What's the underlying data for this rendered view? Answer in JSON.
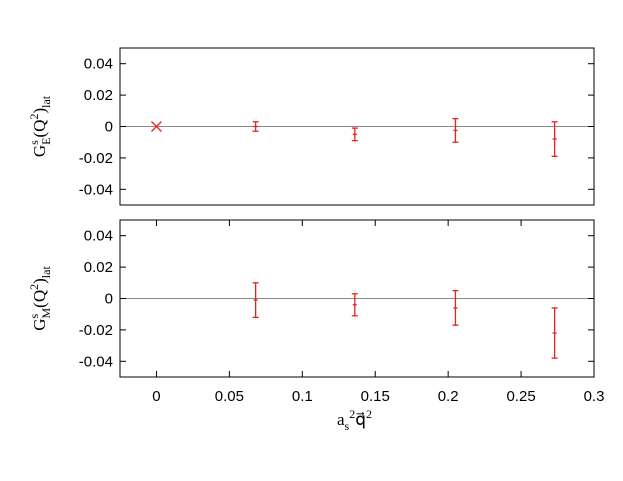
{
  "chart_data": [
    {
      "type": "errorbar",
      "ylabel": [
        {
          "text": "G",
          "pos": "base"
        },
        {
          "text": "s",
          "pos": "sup"
        },
        {
          "text": "E",
          "pos": "sub"
        },
        {
          "text": "(Q",
          "pos": "base"
        },
        {
          "text": "2",
          "pos": "sup"
        },
        {
          "text": ")",
          "pos": "base"
        },
        {
          "text": "lat",
          "pos": "sub"
        }
      ],
      "xlim": [
        -0.025,
        0.3
      ],
      "ylim": [
        -0.05,
        0.05
      ],
      "yticks": [
        0.04,
        0.02,
        0,
        -0.02,
        -0.04
      ],
      "hline": 0,
      "hline_color": "#888888",
      "series": [
        {
          "color": "#e8211c",
          "marker": "x",
          "x": [
            0
          ],
          "values": [
            0
          ],
          "errors": [
            null
          ]
        },
        {
          "color": "#e8211c",
          "marker": "+",
          "x": [
            0.068,
            0.136,
            0.205,
            0.273
          ],
          "values": [
            0,
            -0.005,
            -0.0025,
            -0.008
          ],
          "errors": [
            0.003,
            0.004,
            0.0075,
            0.011
          ]
        }
      ]
    },
    {
      "type": "errorbar",
      "ylabel": [
        {
          "text": "G",
          "pos": "base"
        },
        {
          "text": "s",
          "pos": "sup"
        },
        {
          "text": "M",
          "pos": "sub"
        },
        {
          "text": "(Q",
          "pos": "base"
        },
        {
          "text": "2",
          "pos": "sup"
        },
        {
          "text": ")",
          "pos": "base"
        },
        {
          "text": "lat",
          "pos": "sub"
        }
      ],
      "xlabel": [
        {
          "text": "a",
          "pos": "base"
        },
        {
          "text": "s",
          "pos": "sub"
        },
        {
          "text": "2",
          "pos": "sup"
        },
        {
          "text": "q⃗",
          "pos": "base"
        },
        {
          "text": "2",
          "pos": "sup"
        }
      ],
      "xlim": [
        -0.025,
        0.3
      ],
      "ylim": [
        -0.05,
        0.05
      ],
      "xticks": [
        0,
        0.05,
        0.1,
        0.15,
        0.2,
        0.25,
        0.3
      ],
      "yticks": [
        0.04,
        0.02,
        0,
        -0.02,
        -0.04
      ],
      "hline": 0,
      "hline_color": "#888888",
      "series": [
        {
          "color": "#e8211c",
          "marker": "+",
          "x": [
            0.068,
            0.136,
            0.205,
            0.273
          ],
          "values": [
            -0.001,
            -0.004,
            -0.006,
            -0.022
          ],
          "errors": [
            0.011,
            0.007,
            0.011,
            0.016
          ]
        }
      ]
    }
  ]
}
